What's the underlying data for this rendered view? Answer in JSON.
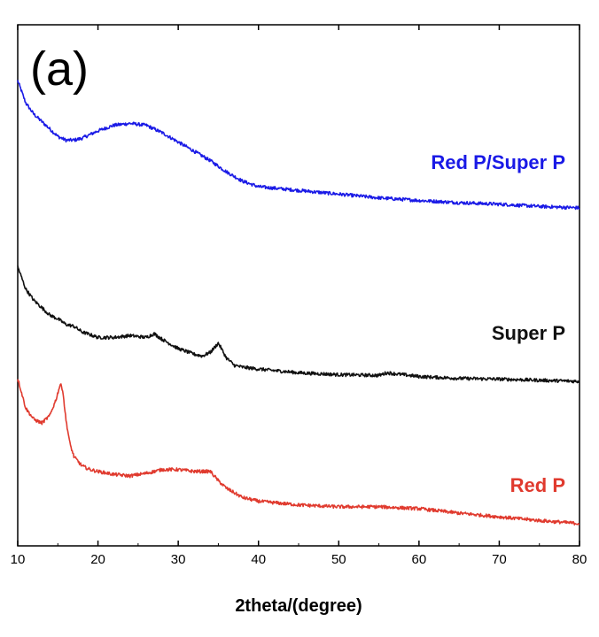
{
  "panel_label": "(a)",
  "chart_data": {
    "type": "line",
    "title": "",
    "xlabel": "2theta/(degree)",
    "ylabel": "",
    "xlim": [
      10,
      80
    ],
    "y_ticks_shown": false,
    "xticks": [
      10,
      20,
      30,
      40,
      50,
      60,
      70,
      80
    ],
    "grid": false,
    "legend": "inline labels at right of each curve",
    "series": [
      {
        "name": "Red P/Super P",
        "color": "#1a1ae6",
        "x": [
          10,
          11,
          12,
          13,
          14,
          15,
          16,
          17,
          18,
          20,
          22,
          24,
          26,
          28,
          30,
          32,
          34,
          36,
          38,
          40,
          45,
          50,
          55,
          60,
          65,
          70,
          75,
          80
        ],
        "y": [
          12.5,
          11.9,
          11.6,
          11.4,
          11.2,
          11.0,
          10.9,
          10.9,
          10.95,
          11.15,
          11.3,
          11.35,
          11.3,
          11.1,
          10.85,
          10.6,
          10.35,
          10.05,
          9.8,
          9.65,
          9.55,
          9.45,
          9.35,
          9.28,
          9.22,
          9.18,
          9.12,
          9.08
        ]
      },
      {
        "name": "Super P",
        "color": "#111111",
        "x": [
          10,
          11,
          12,
          13,
          14,
          15,
          16,
          17,
          18,
          20,
          22,
          24,
          26,
          27,
          28,
          30,
          32,
          33,
          34,
          35,
          36,
          37,
          38,
          40,
          45,
          50,
          55,
          56,
          60,
          65,
          70,
          75,
          80
        ],
        "y": [
          7.5,
          6.9,
          6.6,
          6.4,
          6.2,
          6.1,
          5.95,
          5.9,
          5.75,
          5.6,
          5.6,
          5.65,
          5.6,
          5.7,
          5.55,
          5.3,
          5.15,
          5.1,
          5.2,
          5.45,
          5.05,
          4.85,
          4.8,
          4.75,
          4.65,
          4.6,
          4.58,
          4.65,
          4.55,
          4.5,
          4.48,
          4.45,
          4.42
        ]
      },
      {
        "name": "Red P",
        "color": "#e03a2e",
        "x": [
          10,
          11,
          12,
          13,
          14,
          14.8,
          15.3,
          15.6,
          16,
          16.5,
          17,
          18,
          19,
          20,
          22,
          24,
          26,
          28,
          30,
          32,
          34,
          35,
          36,
          38,
          40,
          45,
          50,
          55,
          60,
          65,
          70,
          75,
          80
        ],
        "y": [
          4.5,
          3.7,
          3.4,
          3.3,
          3.5,
          3.95,
          4.35,
          4.2,
          3.4,
          2.75,
          2.4,
          2.15,
          2.05,
          2.0,
          1.92,
          1.88,
          1.95,
          2.05,
          2.05,
          2.0,
          2.0,
          1.75,
          1.55,
          1.3,
          1.2,
          1.1,
          1.05,
          1.05,
          1.0,
          0.88,
          0.78,
          0.68,
          0.6
        ]
      }
    ]
  }
}
